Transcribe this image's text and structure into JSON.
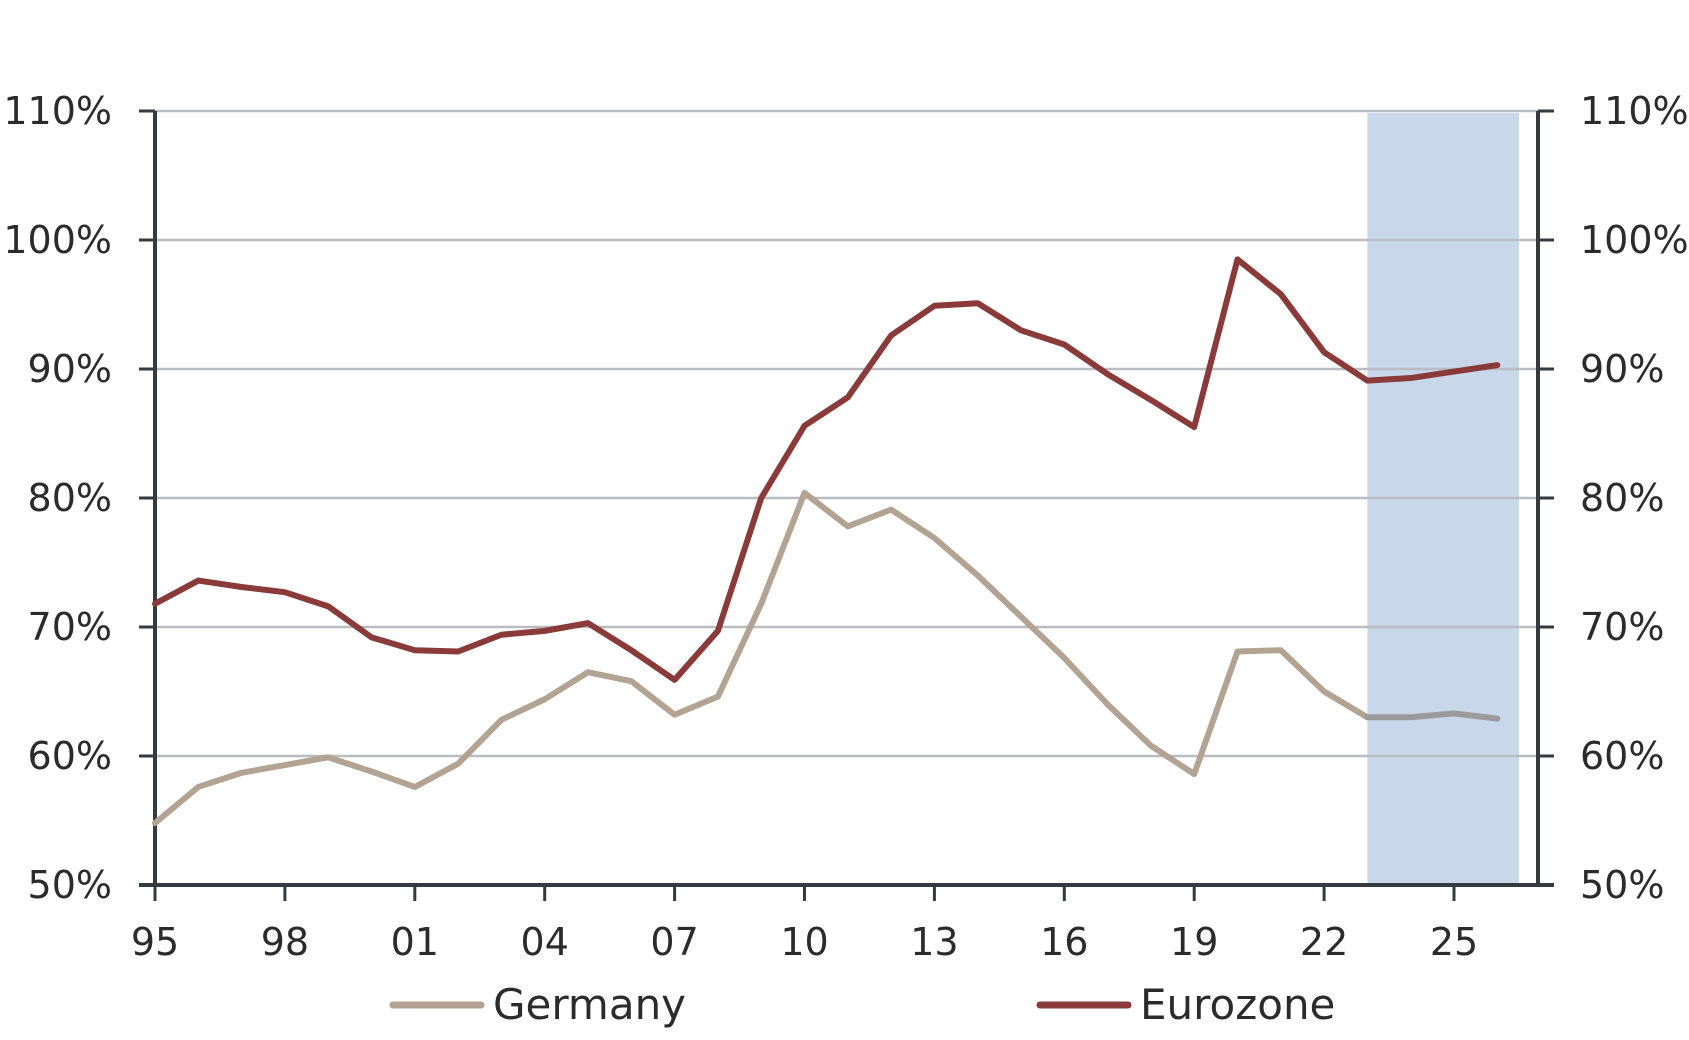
{
  "chart_data": {
    "type": "line",
    "title": "",
    "xlabel": "",
    "ylabel": "",
    "x": [
      1995,
      1996,
      1997,
      1998,
      1999,
      2000,
      2001,
      2002,
      2003,
      2004,
      2005,
      2006,
      2007,
      2008,
      2009,
      2010,
      2011,
      2012,
      2013,
      2014,
      2015,
      2016,
      2017,
      2018,
      2019,
      2020,
      2021,
      2022,
      2023,
      2024,
      2025,
      2026
    ],
    "x_tick_values": [
      1995,
      1998,
      2001,
      2004,
      2007,
      2010,
      2013,
      2016,
      2019,
      2022,
      2025
    ],
    "x_tick_labels": [
      "95",
      "98",
      "01",
      "04",
      "07",
      "10",
      "13",
      "16",
      "19",
      "22",
      "25"
    ],
    "xlim": [
      1995,
      2027
    ],
    "ylim": [
      50,
      110
    ],
    "y_tick_values": [
      50,
      60,
      70,
      80,
      90,
      100,
      110
    ],
    "y_tick_labels": [
      "50%",
      "60%",
      "70%",
      "80%",
      "90%",
      "100%",
      "110%"
    ],
    "secondary_y_tick_labels": [
      "50%",
      "60%",
      "70%",
      "80%",
      "90%",
      "100%",
      "110%"
    ],
    "grid": "horizontal",
    "forecast_shading": {
      "from": 2023,
      "to": 2026.5,
      "color": "#c9d7ea"
    },
    "legend_position": "bottom",
    "series": [
      {
        "name": "Germany",
        "color": "#b3a392",
        "forecast_color": "#9a9a9a",
        "values": [
          54.8,
          57.6,
          58.7,
          59.3,
          59.9,
          58.8,
          57.6,
          59.4,
          62.8,
          64.4,
          66.5,
          65.8,
          63.2,
          64.6,
          71.8,
          80.4,
          77.8,
          79.1,
          76.9,
          74.0,
          70.8,
          67.6,
          64.0,
          60.8,
          58.6,
          68.1,
          68.2,
          65.0,
          63.0,
          63.0,
          63.3,
          62.9
        ],
        "forecast_from": 2023
      },
      {
        "name": "Eurozone",
        "color": "#8b3a3a",
        "values": [
          71.8,
          73.6,
          73.1,
          72.7,
          71.6,
          69.2,
          68.2,
          68.1,
          69.4,
          69.7,
          70.3,
          68.2,
          65.9,
          69.7,
          80.0,
          85.6,
          87.8,
          92.6,
          94.9,
          95.1,
          93.0,
          91.9,
          89.6,
          87.6,
          85.5,
          98.5,
          95.8,
          91.3,
          89.1,
          89.3,
          89.8,
          90.3
        ]
      }
    ]
  }
}
